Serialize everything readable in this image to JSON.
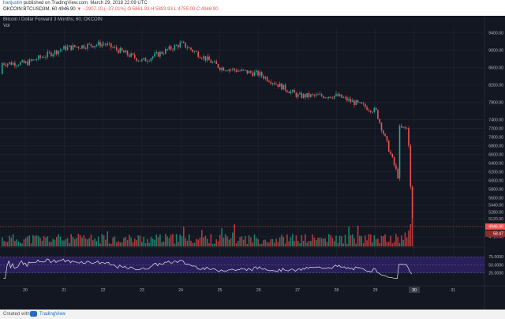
{
  "header": {
    "author": "hanjustin",
    "published_text": "published on TradingView.com, March 29, 2018 22:09 UTC",
    "symbol_line": "OKCOIN:BTCUSD3M, 60",
    "last": "4946.90",
    "change": "−2907.10 (−37.01%)",
    "o": "O:5861.92",
    "h": "H:5893.93",
    "l": "L:4755.00",
    "c": "C:4946.90"
  },
  "pane": {
    "title": "Bitcoin / Dollar Forward 3 Months, 60, OKCOIN",
    "vol_label": "Vol"
  },
  "price_axis": {
    "ticks": [
      "9400.00",
      "9000.00",
      "8600.00",
      "8200.00",
      "7800.00",
      "7400.00",
      "7200.00",
      "7000.00",
      "6800.00",
      "6600.00",
      "6400.00",
      "6200.00",
      "6000.00",
      "5800.00",
      "5600.00",
      "5440.00",
      "5280.00",
      "5120.00",
      "4710.00"
    ],
    "last_price_tag": "4946.90",
    "vol_tag": "58.47"
  },
  "rsi_axis": {
    "ticks": [
      "75.0000",
      "50.0000",
      "25.0000"
    ]
  },
  "time_axis": {
    "labels": [
      "20",
      "21",
      "22",
      "23",
      "24",
      "25",
      "26",
      "27",
      "28",
      "29",
      "30",
      "31"
    ],
    "highlighted": "30"
  },
  "footer": {
    "created_with": "Created with",
    "brand": "TradingView"
  },
  "colors": {
    "up": "#26a69a",
    "down": "#ef5350",
    "background": "#131722",
    "rsi_band": "#2a1f5c",
    "rsi_line": "#e8e8ec",
    "price_tag": "#ef5350"
  },
  "chart_data": {
    "type": "candlestick",
    "symbol": "OKCOIN:BTCUSD3M",
    "interval": "60",
    "closes_by_day": {
      "20": 8700,
      "21": 9050,
      "22": 9150,
      "23": 8750,
      "24": 9150,
      "25": 8600,
      "26": 8450,
      "27": 7950,
      "28": 7950,
      "29": 7600,
      "30": 4946.9
    },
    "last": {
      "open": 5861.92,
      "high": 5893.93,
      "low": 4755.0,
      "close": 4946.9
    },
    "y_range": [
      4600,
      9500
    ],
    "rsi_levels": [
      75,
      50,
      25
    ],
    "grid": true
  }
}
